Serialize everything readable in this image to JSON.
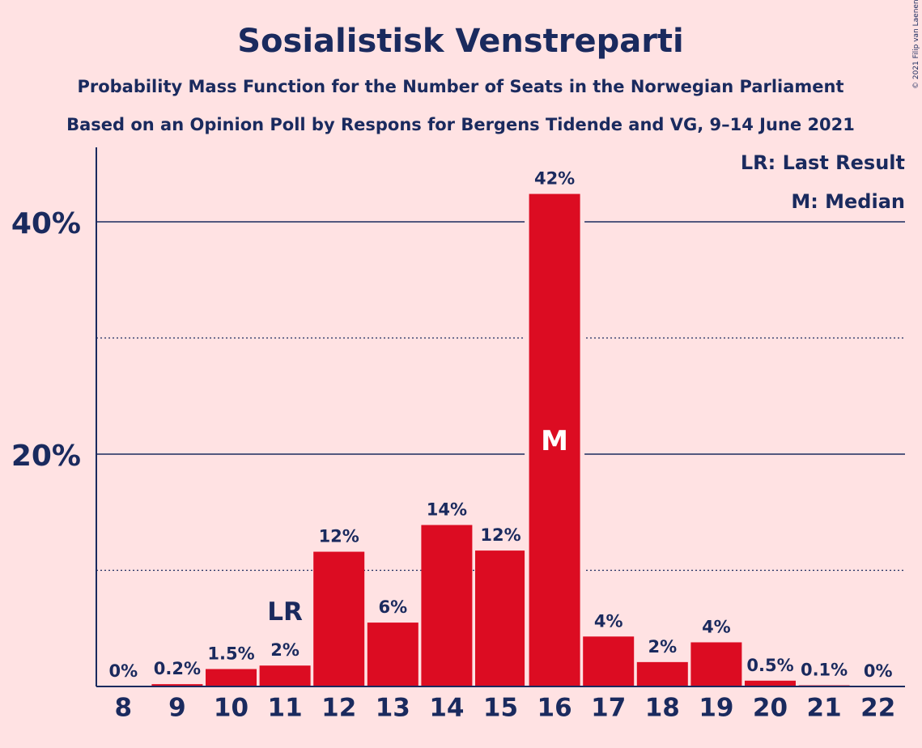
{
  "chart_data": {
    "type": "bar",
    "title": "Sosialistisk Venstreparti",
    "subtitle_1": "Probability Mass Function for the Number of Seats in the Norwegian Parliament",
    "subtitle_2": "Based on an Opinion Poll by Respons for Bergens Tidende and VG, 9–14 June 2021",
    "copyright": "© 2021 Filip van Laenen",
    "legend": {
      "lr": "LR: Last Result",
      "median": "M: Median",
      "placement": "top-right"
    },
    "categories": [
      "8",
      "9",
      "10",
      "11",
      "12",
      "13",
      "14",
      "15",
      "16",
      "17",
      "18",
      "19",
      "20",
      "21",
      "22"
    ],
    "values": [
      0,
      0.2,
      1.5,
      1.8,
      11.6,
      5.5,
      13.9,
      11.7,
      42.4,
      4.3,
      2.1,
      3.8,
      0.5,
      0.1,
      0
    ],
    "labels": [
      "0%",
      "0.2%",
      "1.5%",
      "2%",
      "12%",
      "6%",
      "14%",
      "12%",
      "42%",
      "4%",
      "2%",
      "4%",
      "0.5%",
      "0.1%",
      "0%"
    ],
    "last_result": {
      "category": "11",
      "label": "LR"
    },
    "median": {
      "category": "16",
      "label": "M"
    },
    "yticks": [
      {
        "value": 20,
        "label": "20%"
      },
      {
        "value": 40,
        "label": "40%"
      }
    ],
    "ygrid_minor": [
      10,
      30
    ],
    "ylim": [
      0,
      46
    ],
    "bar_color": "#dc0c22",
    "text_color": "#1a2a5e",
    "background": "#ffe2e3"
  }
}
